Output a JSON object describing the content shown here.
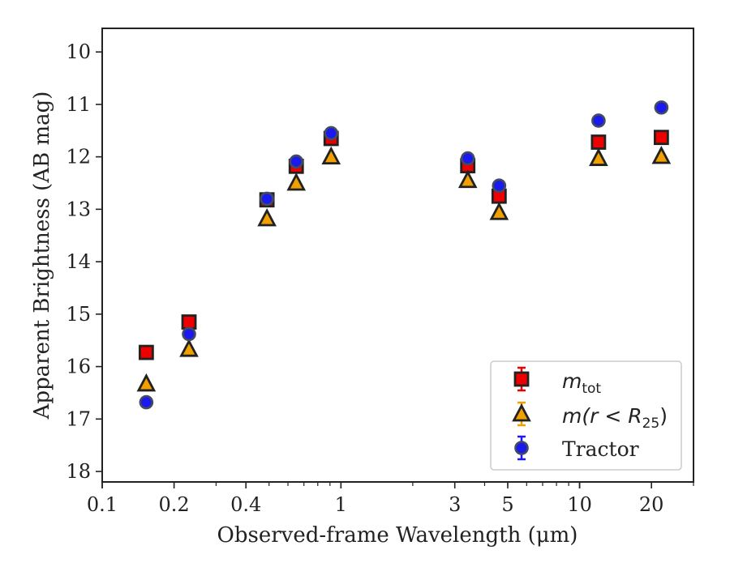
{
  "chart_data": {
    "type": "scatter",
    "xlabel": "Observed-frame Wavelength (μm)",
    "ylabel": "Apparent Brightness (AB mag)",
    "xscale": "log",
    "xlim": [
      0.1,
      30
    ],
    "ylim": [
      18.2,
      9.55
    ],
    "y_inverted": true,
    "xticks": [
      0.1,
      0.2,
      0.4,
      1,
      3,
      5,
      10,
      20
    ],
    "xtick_labels": [
      "0.1",
      "0.2",
      "0.4",
      "1",
      "3",
      "5",
      "10",
      "20"
    ],
    "yticks": [
      10,
      11,
      12,
      13,
      14,
      15,
      16,
      17,
      18
    ],
    "ytick_labels": [
      "10",
      "11",
      "12",
      "13",
      "14",
      "15",
      "16",
      "17",
      "18"
    ],
    "grid": false,
    "legend_position": "lower-right",
    "series": [
      {
        "name": "m_tot",
        "marker": "square",
        "color": "#ee0000",
        "x": [
          0.153,
          0.231,
          0.49,
          0.65,
          0.91,
          3.4,
          4.6,
          12.0,
          22.0
        ],
        "y": [
          15.73,
          15.15,
          12.82,
          12.18,
          11.65,
          12.17,
          12.75,
          11.72,
          11.63
        ]
      },
      {
        "name": "m(r < R25)",
        "marker": "triangle",
        "color": "#f0a000",
        "x": [
          0.153,
          0.231,
          0.49,
          0.65,
          0.91,
          3.4,
          4.6,
          12.0,
          22.0
        ],
        "y": [
          16.33,
          15.67,
          13.18,
          12.5,
          12.0,
          12.45,
          13.06,
          12.03,
          11.99
        ]
      },
      {
        "name": "Tractor",
        "marker": "circle",
        "color": "#1a1aee",
        "x": [
          0.153,
          0.231,
          0.49,
          0.65,
          0.91,
          3.4,
          4.6,
          12.0,
          22.0
        ],
        "y": [
          16.68,
          15.38,
          12.8,
          12.09,
          11.55,
          12.03,
          12.55,
          11.31,
          11.06
        ]
      }
    ],
    "legend": {
      "entries": [
        {
          "main": "m",
          "sub": "tot"
        },
        {
          "main": "m(r < R",
          "sub": "25",
          "tail": ")"
        },
        {
          "main": "Tractor"
        }
      ]
    }
  }
}
